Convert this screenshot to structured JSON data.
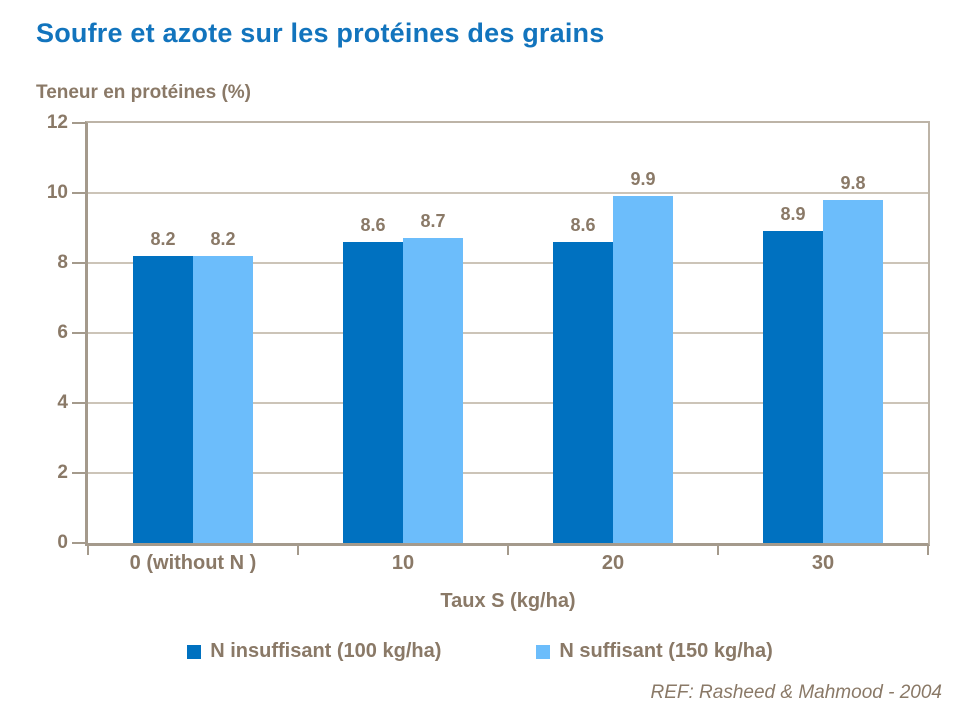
{
  "header": {
    "title": "Soufre et azote sur les protéines des grains"
  },
  "chart_data": {
    "type": "bar",
    "title": "Soufre et azote sur les protéines des grains",
    "ylabel": "Teneur en protéines (%)",
    "xlabel": "Taux S (kg/ha)",
    "categories": [
      "0 (without N )",
      "10",
      "20",
      "30"
    ],
    "series": [
      {
        "name": "N insuffisant (100 kg/ha)",
        "color": "#0071C0",
        "values": [
          8.2,
          8.6,
          8.6,
          8.9
        ]
      },
      {
        "name": "N suffisant (150 kg/ha)",
        "color": "#6CBDFB",
        "values": [
          8.2,
          8.7,
          9.9,
          9.8
        ]
      }
    ],
    "data_labels": [
      [
        "8.2",
        "8.6",
        "8.6",
        "8.9"
      ],
      [
        "8.2",
        "8.7",
        "9.9",
        "9.8"
      ]
    ],
    "ylim": [
      0,
      12
    ],
    "yticks": [
      0,
      2,
      4,
      6,
      8,
      10,
      12
    ],
    "grid": true,
    "legend_position": "bottom"
  },
  "footer": {
    "ref": "REF: Rasheed & Mahmood - 2004"
  },
  "colors": {
    "title_blue": "#1274BD",
    "text_brown": "#8A7967",
    "series_dark_blue": "#0071C0",
    "series_light_blue": "#6CBDFB",
    "gridline": "#CCC4B8",
    "axis": "#A49A8C"
  }
}
